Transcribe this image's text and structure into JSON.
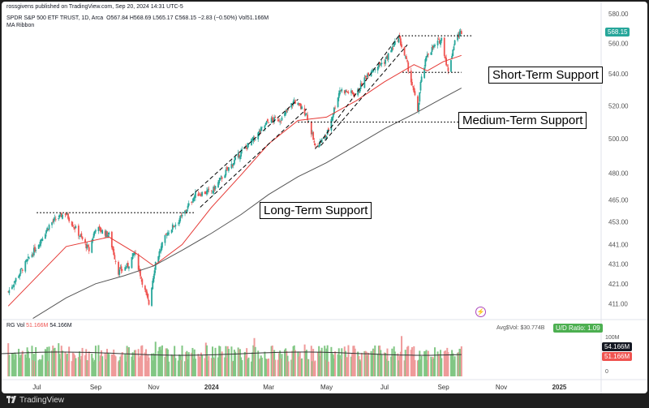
{
  "header": {
    "published": "rossgivens published on TradingView.com, Sep 20, 2024 14:31 UTC-5",
    "symbol_line": "SPDR S&P 500 ETF TRUST, 1D, Arca",
    "ohlc": "O567.84  H568.69  L565.17  C568.15  −2.83 (−0.50%)  Vol51.166M",
    "indicator": "MA Ribbon"
  },
  "price_label": "568.15",
  "volume_pane": {
    "label": "RG Vol",
    "value1": "51.166M",
    "value2": "54.166M",
    "avg_text": "Avg$Vol: $30.774B",
    "ud_ratio": "U/D Ratio: 1.09",
    "scale_100m": "100M",
    "scale_0": "0",
    "badge_dark": "54.166M",
    "badge_red": "51.166M"
  },
  "lightning_icon": "lightning-icon",
  "footer": {
    "brand": "TradingView"
  },
  "colors": {
    "up": "#26a69a",
    "down": "#ef5350",
    "ma_short": "#e53935",
    "ma_long": "#555555",
    "price_tag": "#26a69a",
    "vol_up": "#81c784",
    "vol_down": "#ef9a9a"
  },
  "chart_data": {
    "type": "candlestick",
    "price_axis": {
      "ticks": [
        "580.00",
        "560.00",
        "540.00",
        "520.00",
        "500.00",
        "480.00",
        "465.00",
        "453.00",
        "441.00",
        "431.00",
        "421.00",
        "411.00"
      ],
      "scale": "log",
      "range": [
        405,
        585
      ]
    },
    "time_axis": {
      "ticks": [
        "Jul",
        "Sep",
        "Nov",
        "2024",
        "Mar",
        "May",
        "Jul",
        "Sep",
        "Nov",
        "2025"
      ]
    },
    "close_series": [
      [
        "2023-06-01",
        417
      ],
      [
        "2023-06-15",
        428
      ],
      [
        "2023-07-01",
        440
      ],
      [
        "2023-07-15",
        452
      ],
      [
        "2023-07-31",
        458
      ],
      [
        "2023-08-15",
        446
      ],
      [
        "2023-08-25",
        438
      ],
      [
        "2023-09-01",
        450
      ],
      [
        "2023-09-15",
        446
      ],
      [
        "2023-09-25",
        427
      ],
      [
        "2023-10-05",
        430
      ],
      [
        "2023-10-12",
        437
      ],
      [
        "2023-10-20",
        422
      ],
      [
        "2023-10-27",
        411
      ],
      [
        "2023-11-03",
        432
      ],
      [
        "2023-11-15",
        447
      ],
      [
        "2023-12-01",
        456
      ],
      [
        "2023-12-15",
        468
      ],
      [
        "2024-01-02",
        470
      ],
      [
        "2024-01-15",
        480
      ],
      [
        "2024-02-01",
        492
      ],
      [
        "2024-02-15",
        500
      ],
      [
        "2024-03-01",
        511
      ],
      [
        "2024-03-15",
        512
      ],
      [
        "2024-03-28",
        523
      ],
      [
        "2024-04-10",
        515
      ],
      [
        "2024-04-19",
        495
      ],
      [
        "2024-05-01",
        502
      ],
      [
        "2024-05-15",
        530
      ],
      [
        "2024-06-01",
        527
      ],
      [
        "2024-06-15",
        542
      ],
      [
        "2024-07-01",
        548
      ],
      [
        "2024-07-16",
        564
      ],
      [
        "2024-07-25",
        546
      ],
      [
        "2024-08-05",
        517
      ],
      [
        "2024-08-08",
        534
      ],
      [
        "2024-08-15",
        553
      ],
      [
        "2024-08-30",
        563
      ],
      [
        "2024-09-06",
        541
      ],
      [
        "2024-09-13",
        562
      ],
      [
        "2024-09-20",
        568.15
      ]
    ],
    "ma_short_series": [
      [
        "2023-06-01",
        410
      ],
      [
        "2023-08-01",
        440
      ],
      [
        "2023-09-15",
        445
      ],
      [
        "2023-10-15",
        436
      ],
      [
        "2023-11-01",
        430
      ],
      [
        "2023-12-01",
        441
      ],
      [
        "2024-01-01",
        461
      ],
      [
        "2024-02-01",
        479
      ],
      [
        "2024-03-01",
        497
      ],
      [
        "2024-04-01",
        511
      ],
      [
        "2024-05-01",
        513
      ],
      [
        "2024-06-01",
        523
      ],
      [
        "2024-07-01",
        535
      ],
      [
        "2024-08-01",
        546
      ],
      [
        "2024-08-15",
        542
      ],
      [
        "2024-09-01",
        548
      ],
      [
        "2024-09-20",
        552
      ]
    ],
    "ma_long_series": [
      [
        "2023-06-27",
        404
      ],
      [
        "2023-08-01",
        414
      ],
      [
        "2023-09-01",
        421
      ],
      [
        "2023-10-01",
        425
      ],
      [
        "2023-11-01",
        430
      ],
      [
        "2023-12-01",
        438
      ],
      [
        "2024-01-01",
        447
      ],
      [
        "2024-02-01",
        457
      ],
      [
        "2024-03-01",
        468
      ],
      [
        "2024-04-01",
        478
      ],
      [
        "2024-05-01",
        486
      ],
      [
        "2024-06-01",
        496
      ],
      [
        "2024-07-01",
        506
      ],
      [
        "2024-08-01",
        515
      ],
      [
        "2024-09-01",
        525
      ],
      [
        "2024-09-20",
        531
      ]
    ],
    "annotations": [
      {
        "text": "Long-Term Support",
        "level": 458,
        "from": "2023-07-01",
        "to": "2023-12-15"
      },
      {
        "text": "Medium-Term Support",
        "level": 510,
        "from": "2024-04-01",
        "to": "2024-09-20"
      },
      {
        "text": "Short-Term Support",
        "level": 541,
        "from": "2024-07-20",
        "to": "2024-09-20"
      },
      {
        "text": "",
        "level": 565,
        "from": "2024-07-16",
        "to": "2024-10-01"
      }
    ],
    "price_tag": "568.15"
  }
}
